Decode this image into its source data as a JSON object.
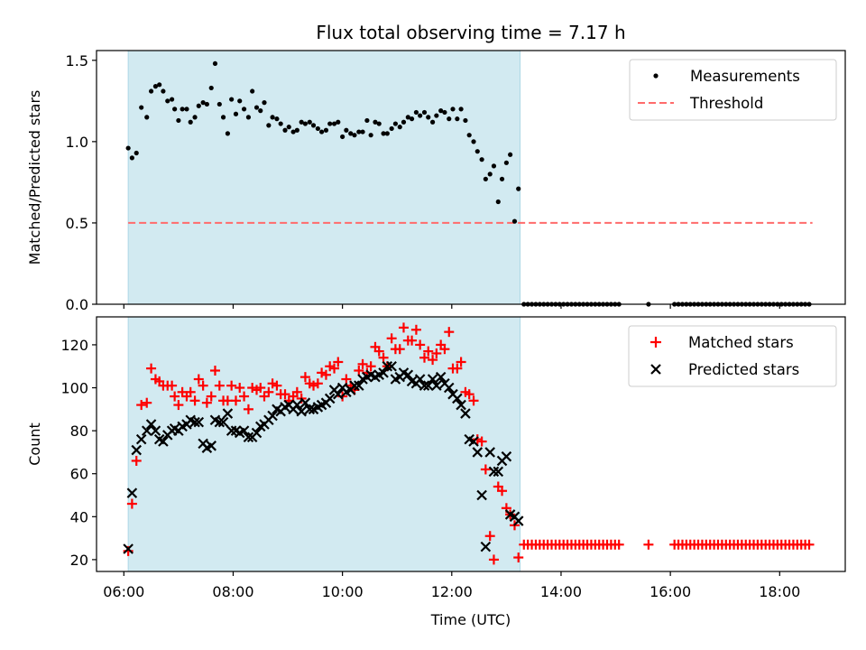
{
  "chart_data": {
    "type": "scatter",
    "title": "Flux total observing time = 7.17 h",
    "xlabel": "Time (UTC)",
    "x_unit": "hours (UTC)",
    "xlim": [
      5.5,
      19.2
    ],
    "xticks": [
      6,
      8,
      10,
      12,
      14,
      16,
      18
    ],
    "xtick_labels": [
      "06:00",
      "08:00",
      "10:00",
      "12:00",
      "14:00",
      "16:00",
      "18:00"
    ],
    "shaded_span": {
      "start": 6.08,
      "end": 13.25,
      "color": "#add8e6"
    },
    "panels": [
      {
        "ylabel": "Matched/Predicted stars",
        "ylim": [
          0,
          1.56
        ],
        "yticks": [
          0.0,
          0.5,
          1.0,
          1.5
        ],
        "ytick_labels": [
          "0.0",
          "0.5",
          "1.0",
          "1.5"
        ],
        "legend_position": "upper right",
        "series": [
          {
            "name": "Measurements",
            "marker": "dot",
            "color": "#000000",
            "x": [
              6.08,
              6.15,
              6.23,
              6.32,
              6.42,
              6.5,
              6.58,
              6.65,
              6.72,
              6.8,
              6.88,
              6.93,
              7.0,
              7.07,
              7.15,
              7.22,
              7.3,
              7.37,
              7.45,
              7.52,
              7.6,
              7.67,
              7.75,
              7.82,
              7.9,
              7.97,
              8.05,
              8.12,
              8.2,
              8.28,
              8.35,
              8.43,
              8.5,
              8.57,
              8.65,
              8.72,
              8.8,
              8.87,
              8.95,
              9.02,
              9.1,
              9.17,
              9.25,
              9.32,
              9.4,
              9.47,
              9.55,
              9.62,
              9.7,
              9.77,
              9.85,
              9.92,
              10.0,
              10.07,
              10.15,
              10.22,
              10.3,
              10.37,
              10.45,
              10.52,
              10.6,
              10.67,
              10.75,
              10.82,
              10.9,
              10.97,
              11.05,
              11.12,
              11.2,
              11.27,
              11.35,
              11.42,
              11.5,
              11.57,
              11.65,
              11.72,
              11.8,
              11.87,
              11.95,
              12.02,
              12.1,
              12.17,
              12.25,
              12.32,
              12.4,
              12.47,
              12.55,
              12.62,
              12.7,
              12.77,
              12.85,
              12.92,
              13.0,
              13.07,
              13.15,
              13.22
            ],
            "y": [
              0.96,
              0.9,
              0.93,
              1.21,
              1.15,
              1.31,
              1.34,
              1.35,
              1.31,
              1.25,
              1.26,
              1.2,
              1.13,
              1.2,
              1.2,
              1.12,
              1.15,
              1.22,
              1.24,
              1.23,
              1.33,
              1.48,
              1.23,
              1.15,
              1.05,
              1.26,
              1.17,
              1.25,
              1.2,
              1.15,
              1.31,
              1.21,
              1.19,
              1.24,
              1.1,
              1.15,
              1.14,
              1.11,
              1.07,
              1.09,
              1.06,
              1.07,
              1.12,
              1.11,
              1.12,
              1.1,
              1.08,
              1.06,
              1.07,
              1.11,
              1.11,
              1.12,
              1.03,
              1.07,
              1.05,
              1.04,
              1.06,
              1.06,
              1.13,
              1.04,
              1.12,
              1.11,
              1.05,
              1.05,
              1.08,
              1.11,
              1.09,
              1.12,
              1.15,
              1.14,
              1.18,
              1.16,
              1.18,
              1.15,
              1.12,
              1.16,
              1.19,
              1.18,
              1.14,
              1.2,
              1.14,
              1.2,
              1.13,
              1.04,
              1.0,
              0.94,
              0.89,
              0.77,
              0.8,
              0.85,
              0.63,
              0.77,
              0.87,
              0.92,
              0.51,
              0.71
            ]
          },
          {
            "name": "Measurements",
            "marker": "dot",
            "color": "#000000",
            "comment_group": "after-span",
            "x_range": [
              13.32,
              18.6
            ],
            "x_gap": [
              15.1,
              16.05
            ],
            "x_extra": [
              15.6
            ],
            "y_value": 0.0
          },
          {
            "name": "Threshold",
            "style": "dashed",
            "color": "#ff6b6b",
            "x": [
              6.08,
              18.6
            ],
            "y": [
              0.5,
              0.5
            ]
          }
        ]
      },
      {
        "ylabel": "Count",
        "ylim": [
          14.5,
          133
        ],
        "yticks": [
          20,
          40,
          60,
          80,
          100,
          120
        ],
        "ytick_labels": [
          "20",
          "40",
          "60",
          "80",
          "100",
          "120"
        ],
        "legend_position": "upper right",
        "series": [
          {
            "name": "Matched stars",
            "marker": "plus",
            "color": "#ff0000",
            "x": [
              6.08,
              6.15,
              6.23,
              6.32,
              6.42,
              6.5,
              6.58,
              6.65,
              6.72,
              6.8,
              6.88,
              6.93,
              7.0,
              7.07,
              7.15,
              7.22,
              7.3,
              7.37,
              7.45,
              7.52,
              7.6,
              7.67,
              7.75,
              7.82,
              7.9,
              7.97,
              8.05,
              8.12,
              8.2,
              8.28,
              8.35,
              8.43,
              8.5,
              8.57,
              8.65,
              8.72,
              8.8,
              8.87,
              8.95,
              9.02,
              9.1,
              9.17,
              9.25,
              9.32,
              9.4,
              9.47,
              9.55,
              9.62,
              9.7,
              9.77,
              9.85,
              9.92,
              10.0,
              10.07,
              10.15,
              10.22,
              10.3,
              10.37,
              10.45,
              10.52,
              10.6,
              10.67,
              10.75,
              10.82,
              10.9,
              10.97,
              11.05,
              11.12,
              11.2,
              11.27,
              11.35,
              11.42,
              11.5,
              11.57,
              11.65,
              11.72,
              11.8,
              11.87,
              11.95,
              12.02,
              12.1,
              12.17,
              12.25,
              12.32,
              12.4,
              12.47,
              12.55,
              12.62,
              12.7,
              12.77,
              12.85,
              12.92,
              13.0,
              13.07,
              13.15,
              13.22
            ],
            "y": [
              24,
              46,
              66,
              92,
              93,
              109,
              104,
              103,
              101,
              101,
              101,
              96,
              92,
              98,
              96,
              98,
              94,
              104,
              101,
              93,
              96,
              108,
              101,
              94,
              94,
              101,
              94,
              100,
              96,
              90,
              100,
              99,
              100,
              96,
              98,
              102,
              101,
              97,
              97,
              94,
              96,
              98,
              95,
              105,
              102,
              101,
              102,
              107,
              106,
              110,
              109,
              112,
              96,
              104,
              101,
              99,
              108,
              111,
              107,
              110,
              119,
              117,
              114,
              110,
              123,
              118,
              118,
              128,
              122,
              122,
              127,
              120,
              114,
              117,
              113,
              116,
              120,
              118,
              126,
              109,
              109,
              112,
              98,
              97,
              94,
              76,
              75,
              62,
              31,
              20,
              54,
              52,
              44,
              41,
              36,
              21
            ]
          },
          {
            "name": "Matched stars",
            "marker": "plus",
            "color": "#ff0000",
            "comment_group": "after-span",
            "x_range": [
              13.32,
              18.6
            ],
            "x_gap": [
              15.1,
              16.05
            ],
            "x_extra": [
              15.6
            ],
            "y_value": 27
          },
          {
            "name": "Predicted stars",
            "marker": "x",
            "color": "#000000",
            "x": [
              6.08,
              6.15,
              6.23,
              6.32,
              6.42,
              6.5,
              6.58,
              6.65,
              6.72,
              6.8,
              6.88,
              6.93,
              7.0,
              7.07,
              7.15,
              7.22,
              7.3,
              7.37,
              7.45,
              7.52,
              7.6,
              7.67,
              7.75,
              7.82,
              7.9,
              7.97,
              8.05,
              8.12,
              8.2,
              8.28,
              8.35,
              8.43,
              8.5,
              8.57,
              8.65,
              8.72,
              8.8,
              8.87,
              8.95,
              9.02,
              9.1,
              9.17,
              9.25,
              9.32,
              9.4,
              9.47,
              9.55,
              9.62,
              9.7,
              9.77,
              9.85,
              9.92,
              10.0,
              10.07,
              10.15,
              10.22,
              10.3,
              10.37,
              10.45,
              10.52,
              10.6,
              10.67,
              10.75,
              10.82,
              10.9,
              10.97,
              11.05,
              11.12,
              11.2,
              11.27,
              11.35,
              11.42,
              11.5,
              11.57,
              11.65,
              11.72,
              11.8,
              11.87,
              11.95,
              12.02,
              12.1,
              12.17,
              12.25,
              12.32,
              12.4,
              12.47,
              12.55,
              12.62,
              12.7,
              12.77,
              12.85,
              12.92,
              13.0,
              13.07,
              13.15,
              13.22
            ],
            "y": [
              25,
              51,
              71,
              76,
              80,
              83,
              80,
              76,
              75,
              78,
              80,
              81,
              80,
              82,
              83,
              85,
              84,
              84,
              74,
              72,
              73,
              85,
              84,
              84,
              88,
              80,
              80,
              79,
              80,
              77,
              77,
              79,
              82,
              83,
              85,
              87,
              90,
              89,
              91,
              92,
              90,
              92,
              89,
              93,
              90,
              90,
              91,
              92,
              93,
              95,
              99,
              97,
              100,
              98,
              99,
              101,
              101,
              104,
              105,
              106,
              105,
              106,
              107,
              110,
              110,
              104,
              105,
              107,
              106,
              103,
              102,
              104,
              101,
              101,
              104,
              101,
              105,
              102,
              100,
              97,
              95,
              92,
              88,
              76,
              75,
              70,
              50,
              26,
              70,
              61,
              61,
              66,
              68,
              41,
              40,
              38
            ]
          }
        ]
      }
    ]
  }
}
